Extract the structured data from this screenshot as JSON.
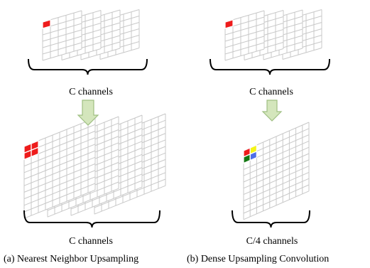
{
  "colors": {
    "red": "#ee1c1c",
    "yellow": "#f5f516",
    "green": "#127812",
    "blue": "#4f6fe8",
    "grid": "#c8c8c8",
    "arrow_fill": "#d4e6bc",
    "arrow_stroke": "#9fbf82"
  },
  "panel_a": {
    "top_label": "C channels",
    "bottom_label": "C channels",
    "caption": "(a) Nearest Neighbor Upsampling"
  },
  "panel_b": {
    "top_label": "C channels",
    "bottom_label": "C/4 channels",
    "caption": "(b) Dense Upsampling Convolution"
  }
}
